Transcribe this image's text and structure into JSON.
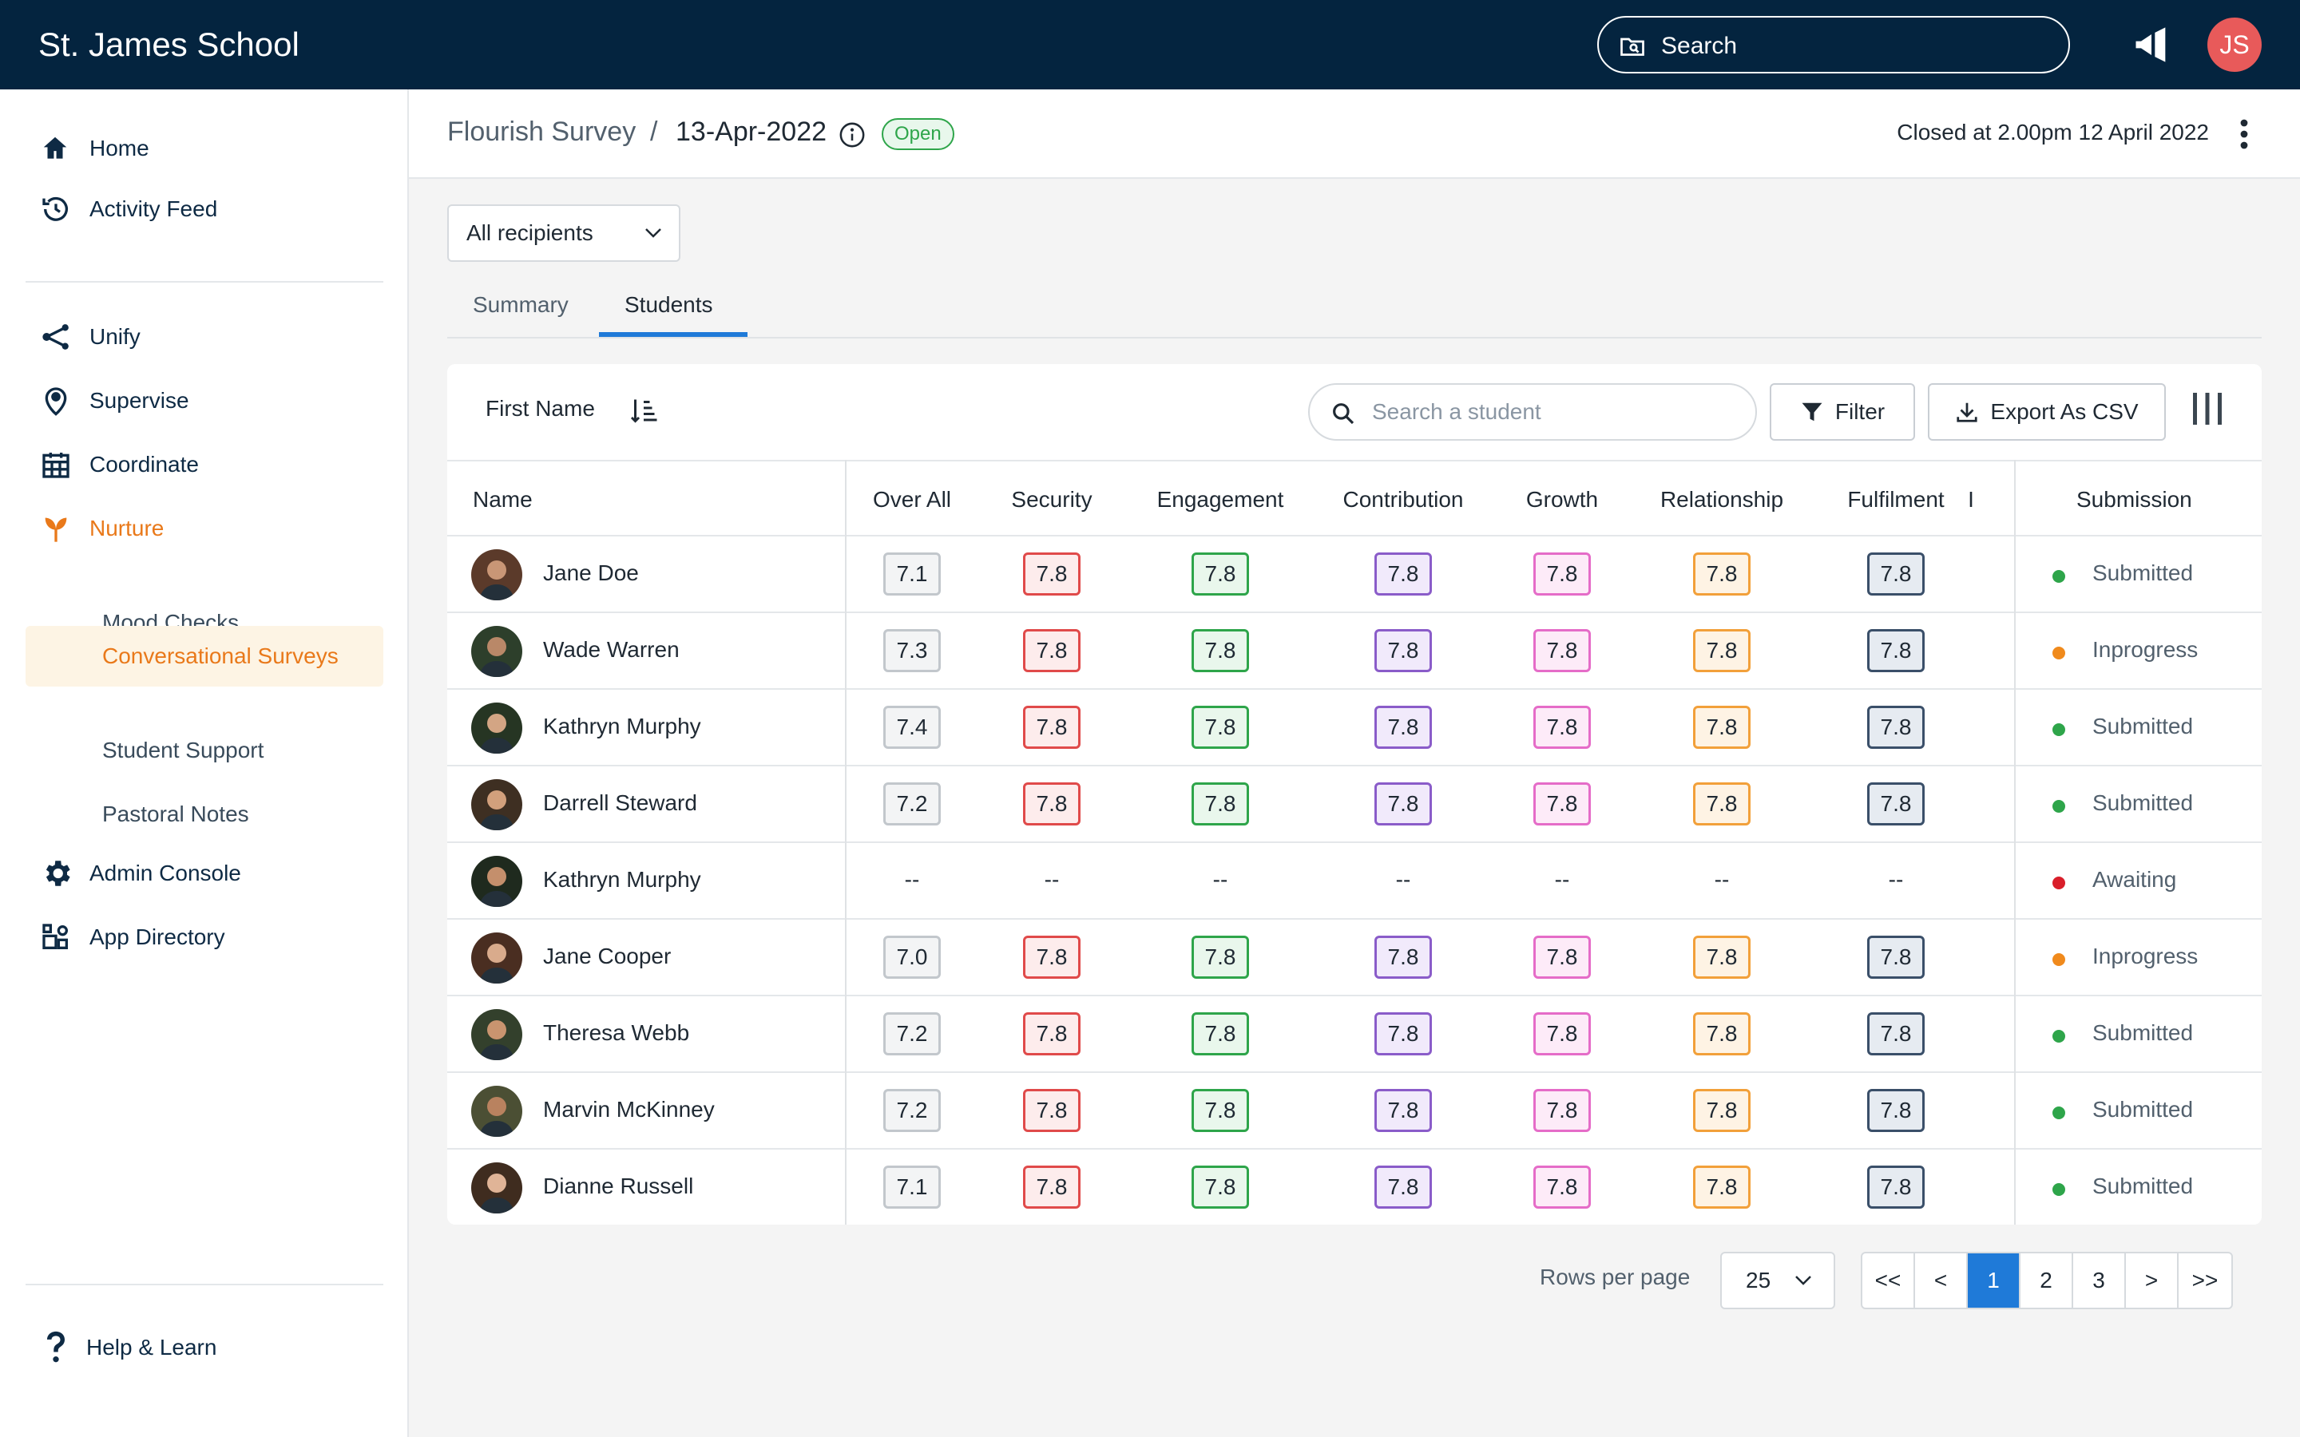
{
  "app": {
    "school_name": "St. James School",
    "search_placeholder": "Search",
    "user_initials": "JS"
  },
  "sidebar": {
    "top_items": [
      {
        "label": "Home",
        "icon": "home-icon"
      },
      {
        "label": "Activity Feed",
        "icon": "history-icon"
      }
    ],
    "items": [
      {
        "label": "Unify",
        "icon": "share-icon"
      },
      {
        "label": "Supervise",
        "icon": "location-pin-icon"
      },
      {
        "label": "Coordinate",
        "icon": "calendar-icon"
      },
      {
        "label": "Nurture",
        "icon": "sprout-icon"
      }
    ],
    "nurture_sub": [
      "Mood Checks",
      "Conversational Surveys",
      "Student Support",
      "Pastoral Notes"
    ],
    "bottom_items": [
      {
        "label": "Admin Console",
        "icon": "gear-icon"
      },
      {
        "label": "App Directory",
        "icon": "app-grid-icon"
      }
    ],
    "help_label": "Help & Learn",
    "accent_color": "#e9791a"
  },
  "header": {
    "breadcrumb_root": "Flourish Survey",
    "separator": "/",
    "breadcrumb_current": "13-Apr-2022",
    "status_badge": "Open",
    "closed_text": "Closed at 2.00pm 12 April 2022"
  },
  "controls": {
    "recipients_value": "All recipients",
    "tabs": [
      "Summary",
      "Students"
    ],
    "active_tab": "Students"
  },
  "toolbar": {
    "sort_label": "First Name",
    "search_placeholder": "Search a student",
    "filter_label": "Filter",
    "export_label": "Export As CSV"
  },
  "table": {
    "columns": [
      "Name",
      "Over All",
      "Security",
      "Engagement",
      "Contribution",
      "Growth",
      "Relationship",
      "Fulfilment",
      "I",
      "Submission"
    ],
    "rows": [
      {
        "name": "Jane Doe",
        "overall": "7.1",
        "scores": [
          "7.8",
          "7.8",
          "7.8",
          "7.8",
          "7.8",
          "7.8"
        ],
        "status": "Submitted"
      },
      {
        "name": "Wade Warren",
        "overall": "7.3",
        "scores": [
          "7.8",
          "7.8",
          "7.8",
          "7.8",
          "7.8",
          "7.8"
        ],
        "status": "Inprogress"
      },
      {
        "name": "Kathryn Murphy",
        "overall": "7.4",
        "scores": [
          "7.8",
          "7.8",
          "7.8",
          "7.8",
          "7.8",
          "7.8"
        ],
        "status": "Submitted"
      },
      {
        "name": "Darrell Steward",
        "overall": "7.2",
        "scores": [
          "7.8",
          "7.8",
          "7.8",
          "7.8",
          "7.8",
          "7.8"
        ],
        "status": "Submitted"
      },
      {
        "name": "Kathryn Murphy",
        "overall": "--",
        "scores": [
          "--",
          "--",
          "--",
          "--",
          "--",
          "--"
        ],
        "status": "Awaiting"
      },
      {
        "name": "Jane Cooper",
        "overall": "7.0",
        "scores": [
          "7.8",
          "7.8",
          "7.8",
          "7.8",
          "7.8",
          "7.8"
        ],
        "status": "Inprogress"
      },
      {
        "name": "Theresa Webb",
        "overall": "7.2",
        "scores": [
          "7.8",
          "7.8",
          "7.8",
          "7.8",
          "7.8",
          "7.8"
        ],
        "status": "Submitted"
      },
      {
        "name": "Marvin McKinney",
        "overall": "7.2",
        "scores": [
          "7.8",
          "7.8",
          "7.8",
          "7.8",
          "7.8",
          "7.8"
        ],
        "status": "Submitted"
      },
      {
        "name": "Dianne Russell",
        "overall": "7.1",
        "scores": [
          "7.8",
          "7.8",
          "7.8",
          "7.8",
          "7.8",
          "7.8"
        ],
        "status": "Submitted"
      }
    ],
    "score_colors": [
      {
        "border": "#e04a4a",
        "bg": "#fdecec"
      },
      {
        "border": "#2ea54a",
        "bg": "#e9f7ec"
      },
      {
        "border": "#8a5cc9",
        "bg": "#f1eafb"
      },
      {
        "border": "#e56cc8",
        "bg": "#fdebf8"
      },
      {
        "border": "#f2a03a",
        "bg": "#fef3e4"
      },
      {
        "border": "#3a4f69",
        "bg": "#e6ebf1"
      }
    ],
    "overall_color": {
      "border": "#c2c7cc",
      "bg": "#f3f4f5"
    },
    "status_colors": {
      "Submitted": "#2ea54a",
      "Inprogress": "#f08a1c",
      "Awaiting": "#d91e2a"
    }
  },
  "pagination": {
    "rows_per_page_label": "Rows per page",
    "rows_per_page": "25",
    "buttons": [
      "<<",
      "<",
      "1",
      "2",
      "3",
      ">",
      ">>"
    ],
    "current": "1"
  }
}
